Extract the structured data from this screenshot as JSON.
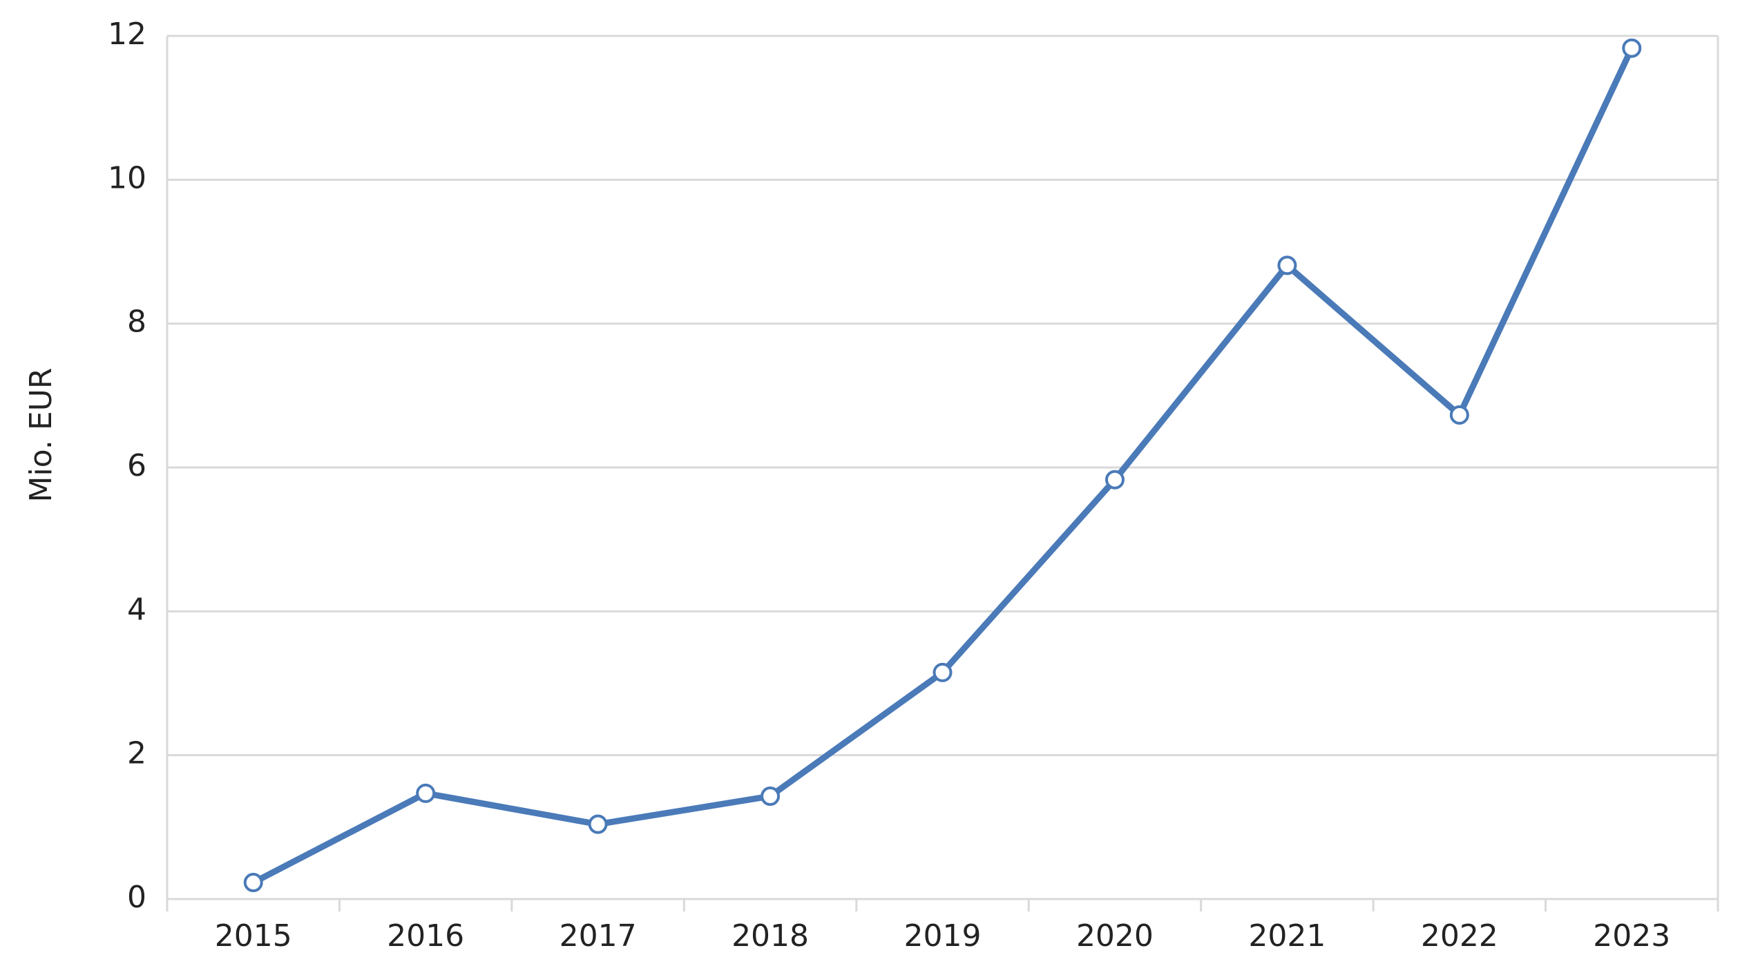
{
  "chart_data": {
    "type": "line",
    "y_label": "Mio. EUR",
    "categories": [
      "2015",
      "2016",
      "2017",
      "2018",
      "2019",
      "2020",
      "2021",
      "2022",
      "2023"
    ],
    "values": [
      0.23,
      1.47,
      1.04,
      1.43,
      3.15,
      5.83,
      8.81,
      6.73,
      11.83
    ],
    "color": "#4a7ab8",
    "ylim": [
      0,
      12
    ],
    "yticks": [
      0,
      2,
      4,
      6,
      8,
      10,
      12
    ],
    "grid": true
  }
}
